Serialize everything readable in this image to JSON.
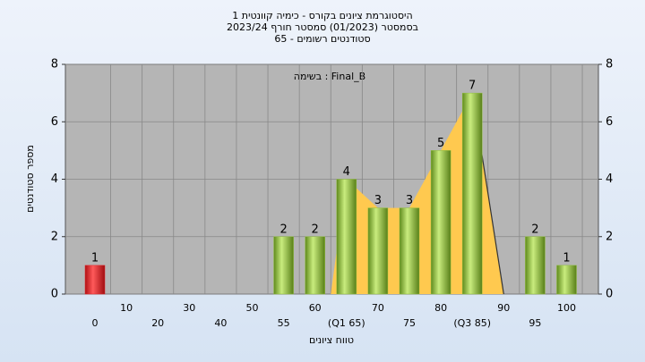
{
  "chart_data": {
    "type": "bar",
    "title": "היסטוגרמת ציונים בקורס - כימיה קוונטית 1",
    "subtitle": "בסמסטר  (01/2023)  סמסטר חורף  2023/24",
    "subtitle2": "סטודנטים רשומים - 65",
    "annotation": "בשימה : Final_B",
    "x_label": "טווח ציונים",
    "y_label": "מספר סטודנטים",
    "categories": [
      "0",
      "10",
      "20",
      "30",
      "40",
      "50",
      "55",
      "60",
      "(Q1 65)",
      "70",
      "75",
      "80",
      "(Q3 85)",
      "90",
      "95",
      "100"
    ],
    "values": [
      1,
      0,
      0,
      0,
      0,
      0,
      2,
      2,
      4,
      3,
      3,
      5,
      7,
      0,
      2,
      1
    ],
    "colors": [
      "#e0262a",
      "#8fbe3c",
      "#8fbe3c",
      "#8fbe3c",
      "#8fbe3c",
      "#8fbe3c",
      "#8fbe3c",
      "#8fbe3c",
      "#8fbe3c",
      "#8fbe3c",
      "#8fbe3c",
      "#8fbe3c",
      "#8fbe3c",
      "#8fbe3c",
      "#8fbe3c",
      "#8fbe3c"
    ],
    "area_color": "#ffc94f",
    "ylim": [
      0,
      8
    ],
    "yticks": [
      0,
      2,
      4,
      6,
      8
    ],
    "grid": true
  }
}
